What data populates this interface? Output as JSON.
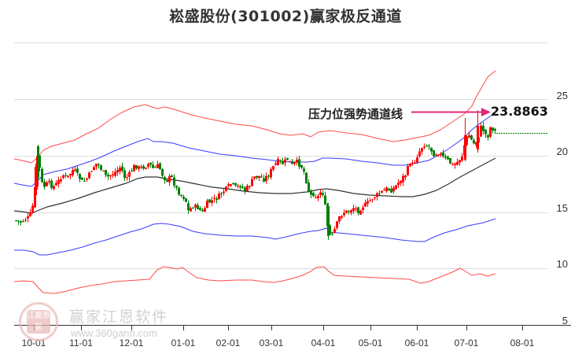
{
  "title": "崧盛股份(301002)赢家极反通道",
  "annotation": {
    "label": "压力位强势通道线",
    "value": "23.8863",
    "arrow_color": "#e0297a"
  },
  "watermark": {
    "text": "赢家江恩软件",
    "url": "www.360gann.com",
    "logo_chars": "江赢恩家"
  },
  "colors": {
    "up": "#ff0000",
    "down": "#008000",
    "outer_band": "#ff4a4a",
    "inner_band": "#3a3aff",
    "middle": "#333333",
    "last_price_line": "#008000",
    "grid": "#dddddd"
  },
  "chart_data": {
    "type": "candlestick",
    "title": "崧盛股份(301002)赢家极反通道",
    "xlabel": "",
    "ylabel": "",
    "ylim": [
      5,
      28
    ],
    "y_ticks": [
      5,
      10,
      15,
      20,
      25
    ],
    "x_ticks": [
      "10-01",
      "11-01",
      "12-01",
      "01-01",
      "02-01",
      "03-01",
      "04-01",
      "05-01",
      "06-01",
      "07-01",
      "08-01"
    ],
    "grid": true,
    "resistance_line": {
      "label": "压力位强势通道线",
      "value": 23.8863
    },
    "last_close": 22.1,
    "series": [
      {
        "name": "upper_outer_channel",
        "color": "red",
        "approx_values": {
          "10-01": 19.5,
          "11-01": 21.8,
          "12-01": 24.5,
          "01-01": 25.2,
          "02-01": 24.5,
          "03-01": 23.4,
          "04-01": 23.2,
          "05-01": 22.6,
          "06-01": 22.4,
          "07-01": 24.9,
          "end": 27.5
        }
      },
      {
        "name": "upper_inner_channel",
        "color": "blue",
        "approx_values": {
          "10-01": 17.8,
          "11-01": 19.0,
          "12-01": 20.9,
          "01-01": 21.4,
          "02-01": 20.7,
          "03-01": 20.2,
          "04-01": 20.3,
          "05-01": 20.0,
          "06-01": 20.1,
          "07-01": 21.7,
          "end": 23.9
        }
      },
      {
        "name": "middle_line",
        "color": "black",
        "approx_values": {
          "10-01": 14.8,
          "11-01": 16.2,
          "12-01": 17.3,
          "01-01": 17.9,
          "02-01": 17.2,
          "03-01": 16.7,
          "04-01": 17.0,
          "05-01": 16.5,
          "06-01": 16.7,
          "07-01": 18.0,
          "end": 19.7
        }
      },
      {
        "name": "lower_inner_channel",
        "color": "blue",
        "approx_values": {
          "10-01": 11.3,
          "11-01": 11.8,
          "12-01": 12.6,
          "01-01": 14.0,
          "02-01": 13.4,
          "03-01": 12.9,
          "04-01": 13.4,
          "05-01": 12.8,
          "06-01": 12.4,
          "07-01": 13.4,
          "end": 14.4
        }
      },
      {
        "name": "lower_outer_channel",
        "color": "red",
        "approx_values": {
          "10-01": 8.9,
          "11-01": 8.6,
          "12-01": 9.6,
          "01-01": 10.3,
          "02-01": 9.7,
          "03-01": 9.2,
          "04-01": 10.1,
          "05-01": 9.5,
          "06-01": 9.1,
          "07-01": 10.0,
          "end": 9.5
        }
      },
      {
        "name": "price_candles",
        "color": "red_up_green_down",
        "approx_close": {
          "10-01": 15.0,
          "mid-10": 20.0,
          "11-01": 17.8,
          "12-01": 18.4,
          "01-01": 16.3,
          "01-mid": 15.0,
          "02-01": 17.3,
          "03-01": 18.0,
          "03-25": 17.7,
          "04-01": 17.0,
          "04-03": 14.2,
          "05-01": 15.7,
          "06-01": 19.0,
          "06-20": 19.3,
          "07-01": 20.8,
          "07-10": 22.5,
          "end": 22.1
        }
      }
    ]
  },
  "y_axis_labels": [
    "25",
    "20",
    "15",
    "10",
    "5"
  ],
  "x_axis_labels": [
    "10-01",
    "11-01",
    "12-01",
    "01-01",
    "02-01",
    "03-01",
    "04-01",
    "05-01",
    "06-01",
    "07-01",
    "08-01"
  ]
}
